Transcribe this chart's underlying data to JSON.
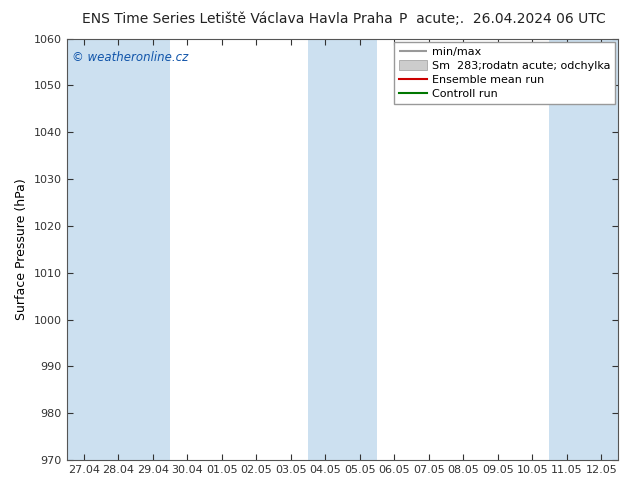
{
  "title_left": "ENS Time Series Letiště Václava Havla Praha",
  "title_right": "P  acute;.  26.04.2024 06 UTC",
  "ylabel": "Surface Pressure (hPa)",
  "ylim": [
    970,
    1060
  ],
  "yticks": [
    970,
    980,
    990,
    1000,
    1010,
    1020,
    1030,
    1040,
    1050,
    1060
  ],
  "x_labels": [
    "27.04",
    "28.04",
    "29.04",
    "30.04",
    "01.05",
    "02.05",
    "03.05",
    "04.05",
    "05.05",
    "06.05",
    "07.05",
    "08.05",
    "09.05",
    "10.05",
    "11.05",
    "12.05"
  ],
  "x_positions": [
    0,
    1,
    2,
    3,
    4,
    5,
    6,
    7,
    8,
    9,
    10,
    11,
    12,
    13,
    14,
    15
  ],
  "blue_band_positions": [
    0,
    1,
    2,
    7,
    8,
    14,
    15
  ],
  "band_color": "#cce0f0",
  "fig_bg_color": "#ffffff",
  "plot_bg_color": "#ffffff",
  "spine_color": "#555555",
  "tick_color": "#333333",
  "legend_min_max_color": "#999999",
  "legend_shade_color": "#cccccc",
  "legend_mean_color": "#cc0000",
  "legend_control_color": "#007700",
  "watermark": "© weatheronline.cz",
  "watermark_color": "#1155aa",
  "title_fontsize": 10,
  "tick_fontsize": 8,
  "ylabel_fontsize": 9,
  "legend_fontsize": 8
}
